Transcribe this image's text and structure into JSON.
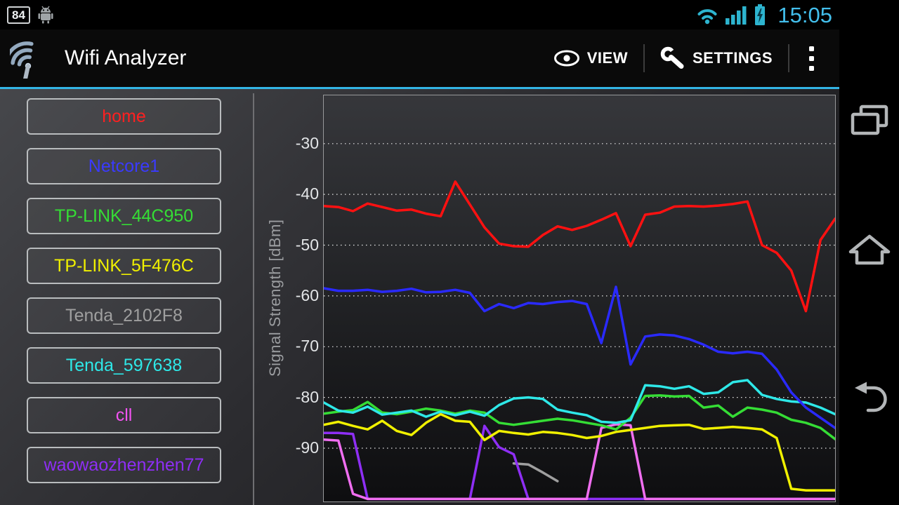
{
  "status_bar": {
    "battery_percent": "84",
    "time": "15:05",
    "accent_color": "#33b5e5"
  },
  "action_bar": {
    "title": "Wifi Analyzer",
    "actions": [
      {
        "label": "VIEW",
        "icon": "eye-icon"
      },
      {
        "label": "SETTINGS",
        "icon": "wrench-icon"
      }
    ]
  },
  "sidebar": {
    "networks": [
      {
        "label": "home",
        "color": "#ff2020"
      },
      {
        "label": "Netcore1",
        "color": "#3a3aff"
      },
      {
        "label": "TP-LINK_44C950",
        "color": "#35dd35"
      },
      {
        "label": "TP-LINK_5F476C",
        "color": "#f0f000"
      },
      {
        "label": "Tenda_2102F8",
        "color": "#9f9f9f"
      },
      {
        "label": "Tenda_597638",
        "color": "#2ee8e8"
      },
      {
        "label": "cll",
        "color": "#f253f2"
      },
      {
        "label": "waowaozhenzhen77",
        "color": "#8e2ef5"
      }
    ]
  },
  "nav_bar": {
    "icons": [
      "recent-apps-icon",
      "home-icon",
      "back-icon"
    ]
  },
  "chart_data": {
    "type": "line",
    "title": "",
    "xlabel": "",
    "ylabel": "Signal Strength [dBm]",
    "yticks": [
      -30,
      -40,
      -50,
      -60,
      -70,
      -80,
      -90
    ],
    "ylim": [
      -100.5,
      -20.5
    ],
    "grid": "dotted horizontal",
    "legend_position": "none (sidebar buttons act as legend)",
    "x_count": 36,
    "series": [
      {
        "name": "Tenda_2102F8",
        "color": "#9f9f9f",
        "values": [
          null,
          null,
          null,
          null,
          null,
          null,
          null,
          null,
          null,
          null,
          null,
          null,
          null,
          -93.0,
          -93.2,
          -94.8,
          -96.5,
          null,
          null,
          null,
          null,
          null,
          null,
          null,
          null,
          null,
          null,
          null,
          null,
          null,
          null,
          null,
          null,
          null,
          null,
          null
        ]
      },
      {
        "name": "waowaozhenzhen77",
        "color": "#8e2ef5",
        "values": [
          -87.0,
          -87.0,
          -87.2,
          -100,
          -100,
          -100,
          -100,
          -100,
          -100,
          -100,
          -100,
          -85.6,
          -89.8,
          -91.2,
          -100,
          -100,
          -100,
          -100,
          -100,
          -100,
          -100,
          -100,
          -100,
          -100,
          -100,
          -100,
          -100,
          -100,
          -100,
          -100,
          -100,
          -100,
          -100,
          -100,
          -100,
          -100
        ]
      },
      {
        "name": "cll",
        "color": "#f06ef0",
        "values": [
          -88.3,
          -88.5,
          -99.0,
          -100,
          -100,
          -100,
          -100,
          -100,
          -100,
          -100,
          -100,
          -100,
          -100,
          -100,
          -100,
          -100,
          -100,
          -100,
          -100,
          -86.0,
          -85.3,
          -85.5,
          -100,
          -100,
          -100,
          -100,
          -100,
          -100,
          -100,
          -100,
          -100,
          -100,
          -100,
          -100,
          -100,
          -100
        ]
      },
      {
        "name": "TP-LINK_5F476C",
        "color": "#f0f000",
        "values": [
          -85.4,
          -84.8,
          -85.6,
          -86.3,
          -84.6,
          -86.6,
          -87.4,
          -85.0,
          -83.3,
          -84.6,
          -84.8,
          -88.4,
          -86.6,
          -87.0,
          -87.3,
          -86.8,
          -87.0,
          -87.4,
          -88.0,
          -87.6,
          -86.8,
          -86.4,
          -86.0,
          -85.6,
          -85.5,
          -85.4,
          -86.2,
          -86.0,
          -85.8,
          -86.0,
          -86.3,
          -88.0,
          -98.0,
          -98.3,
          -98.3,
          -98.3
        ]
      },
      {
        "name": "TP-LINK_44C950",
        "color": "#35dd35",
        "values": [
          -83.2,
          -82.8,
          -82.5,
          -80.9,
          -83.0,
          -83.3,
          -82.8,
          -82.2,
          -82.6,
          -83.2,
          -82.6,
          -83.0,
          -85.0,
          -85.4,
          -85.0,
          -84.6,
          -84.2,
          -84.5,
          -85.0,
          -85.5,
          -86.3,
          -84.0,
          -79.7,
          -79.6,
          -79.8,
          -79.7,
          -82.0,
          -81.6,
          -83.8,
          -82.0,
          -82.4,
          -83.0,
          -84.4,
          -85.0,
          -86.0,
          -88.2
        ]
      },
      {
        "name": "Tenda_597638",
        "color": "#2ee8e8",
        "values": [
          -81.0,
          -82.6,
          -83.0,
          -81.8,
          -83.4,
          -83.0,
          -82.6,
          -83.8,
          -82.8,
          -83.5,
          -82.8,
          -83.6,
          -81.5,
          -80.2,
          -80.0,
          -80.3,
          -82.4,
          -83.0,
          -83.5,
          -84.8,
          -85.0,
          -84.5,
          -77.6,
          -77.8,
          -78.3,
          -77.8,
          -79.3,
          -79.0,
          -77.0,
          -76.6,
          -79.5,
          -80.3,
          -80.8,
          -81.0,
          -82.0,
          -83.3
        ]
      },
      {
        "name": "Netcore1",
        "color": "#2a2aff",
        "values": [
          -58.5,
          -59.0,
          -59.0,
          -58.8,
          -59.2,
          -59.0,
          -58.6,
          -59.3,
          -59.2,
          -58.8,
          -59.4,
          -63.0,
          -61.6,
          -62.4,
          -61.4,
          -61.6,
          -61.2,
          -61.0,
          -61.6,
          -69.3,
          -58.2,
          -73.5,
          -68.0,
          -67.6,
          -67.8,
          -68.5,
          -69.6,
          -71.0,
          -71.3,
          -71.0,
          -71.4,
          -74.5,
          -79.0,
          -82.0,
          -84.0,
          -86.0
        ]
      },
      {
        "name": "home",
        "color": "#ff1111",
        "values": [
          -42.3,
          -42.5,
          -43.3,
          -41.8,
          -42.5,
          -43.2,
          -43.0,
          -43.8,
          -44.3,
          -37.5,
          -42.0,
          -46.5,
          -49.7,
          -50.2,
          -50.3,
          -48.0,
          -46.3,
          -47.0,
          -46.2,
          -45.0,
          -43.7,
          -50.2,
          -44.0,
          -43.6,
          -42.4,
          -42.3,
          -42.4,
          -42.2,
          -41.9,
          -41.4,
          -50.0,
          -51.5,
          -55.0,
          -63.0,
          -49.0,
          -44.8
        ]
      }
    ]
  }
}
